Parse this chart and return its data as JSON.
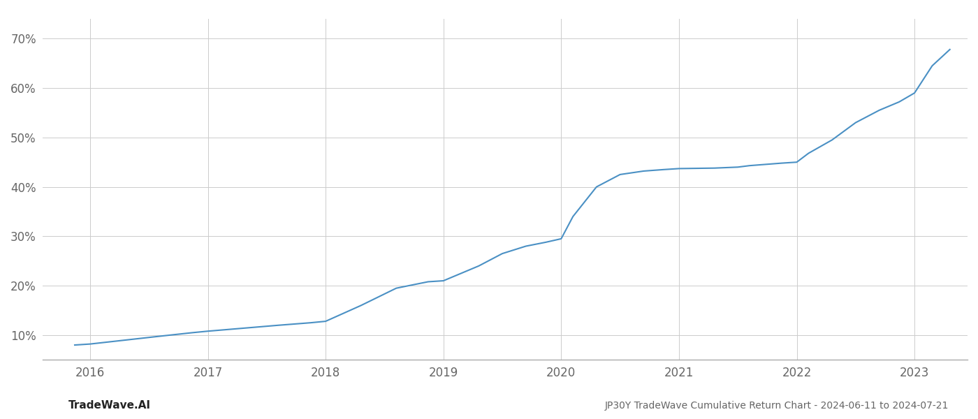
{
  "title": "JP30Y TradeWave Cumulative Return Chart - 2024-06-11 to 2024-07-21",
  "watermark": "TradeWave.AI",
  "line_color": "#4a90c4",
  "line_width": 1.5,
  "background_color": "#ffffff",
  "grid_color": "#cccccc",
  "xlim": [
    2015.6,
    2023.45
  ],
  "ylim": [
    0.05,
    0.74
  ],
  "yticks": [
    0.1,
    0.2,
    0.3,
    0.4,
    0.5,
    0.6,
    0.7
  ],
  "xticks": [
    2016,
    2017,
    2018,
    2019,
    2020,
    2021,
    2022,
    2023
  ],
  "x": [
    2015.87,
    2016.0,
    2016.3,
    2016.6,
    2016.87,
    2017.0,
    2017.3,
    2017.6,
    2017.87,
    2018.0,
    2018.3,
    2018.6,
    2018.87,
    2019.0,
    2019.3,
    2019.5,
    2019.7,
    2019.87,
    2020.0,
    2020.1,
    2020.3,
    2020.5,
    2020.7,
    2020.87,
    2021.0,
    2021.3,
    2021.5,
    2021.6,
    2021.87,
    2022.0,
    2022.1,
    2022.3,
    2022.5,
    2022.7,
    2022.87,
    2023.0,
    2023.15,
    2023.3
  ],
  "y": [
    0.08,
    0.082,
    0.09,
    0.098,
    0.105,
    0.108,
    0.114,
    0.12,
    0.125,
    0.128,
    0.16,
    0.195,
    0.208,
    0.21,
    0.24,
    0.265,
    0.28,
    0.288,
    0.295,
    0.34,
    0.4,
    0.425,
    0.432,
    0.435,
    0.437,
    0.438,
    0.44,
    0.443,
    0.448,
    0.45,
    0.468,
    0.495,
    0.53,
    0.555,
    0.572,
    0.59,
    0.645,
    0.678
  ]
}
